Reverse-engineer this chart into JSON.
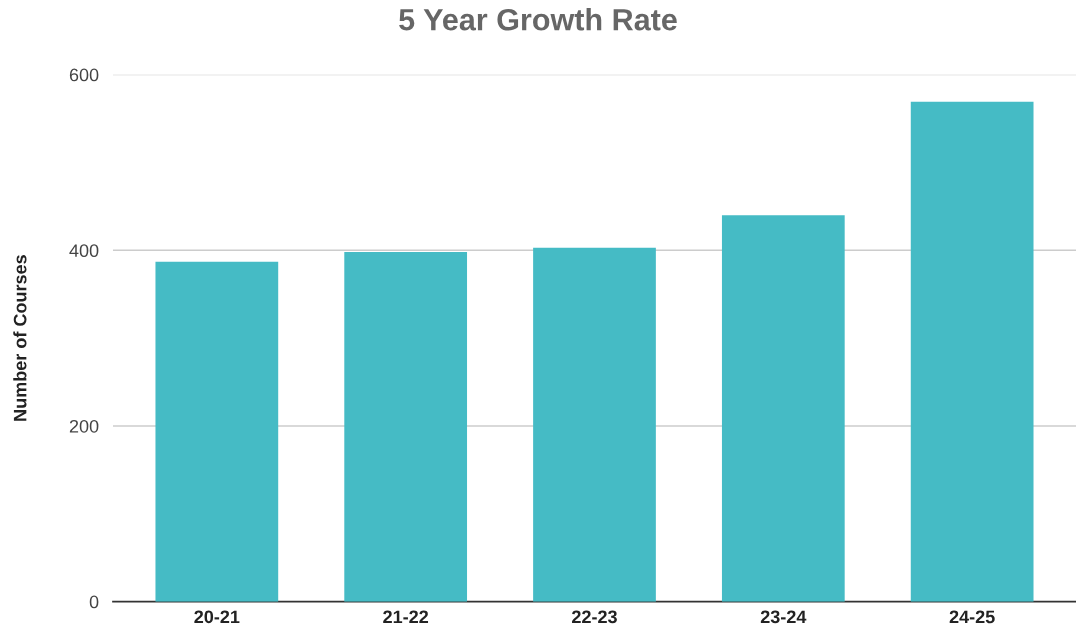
{
  "chart_data": {
    "type": "bar",
    "title": "5 Year Growth Rate",
    "ylabel": "Number of Courses",
    "categories": [
      "20-21",
      "21-22",
      "22-23",
      "23-24",
      "24-25"
    ],
    "values": [
      387,
      398,
      403,
      440,
      569
    ],
    "color": "#45bbc5",
    "ylim": [
      0,
      600
    ],
    "yticks": [
      0,
      200,
      400,
      600
    ],
    "grid": "y",
    "legend": false
  }
}
